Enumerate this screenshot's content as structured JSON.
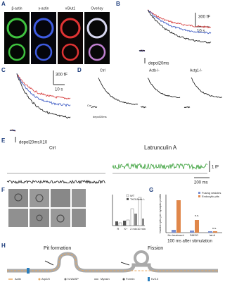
{
  "panels": {
    "A": {
      "letter": "A",
      "labels": [
        "β-actin",
        "γ-actin",
        "vGlut1",
        "Overlay"
      ]
    },
    "B": {
      "letter": "B",
      "scale_y": "300 fF",
      "scale_x": "10 s",
      "stimulus": "depol20ms"
    },
    "C": {
      "letter": "C",
      "scale_y": "300 fF",
      "scale_x": "10 s",
      "stimulus": "depol20msX10"
    },
    "D": {
      "letter": "D",
      "labels": [
        "Ctrl",
        "Actb-/-",
        "Actg1-/-"
      ],
      "trace": "Cm",
      "stimulus": "depol20ms"
    },
    "E": {
      "letter": "E",
      "labels": [
        "Ctrl",
        "Latrunculin A"
      ],
      "scale_y": "1 fF",
      "scale_x": "200 ms"
    },
    "F": {
      "letter": "F",
      "legend": [
        "WT",
        "TKO/Actb-/-"
      ],
      "categories": [
        "R",
        "K+",
        "2 min",
        "10 min"
      ]
    },
    "G": {
      "letter": "G",
      "y_label": "Number pits per synaptic profile",
      "legend": [
        "Fusing vesicles",
        "Endocytic pits"
      ],
      "categories": [
        "No treatment",
        "DMSO",
        "lat-A"
      ],
      "annotation": "n.s.",
      "x_label": "100 ms after stimulation"
    },
    "H": {
      "letter": "H",
      "titles": [
        "Pit formation",
        "Fission"
      ],
      "legend": [
        "Actin",
        "Arp2/3",
        "N-WASP",
        "Myosin",
        "Formin",
        "Kv3.3"
      ]
    }
  }
}
